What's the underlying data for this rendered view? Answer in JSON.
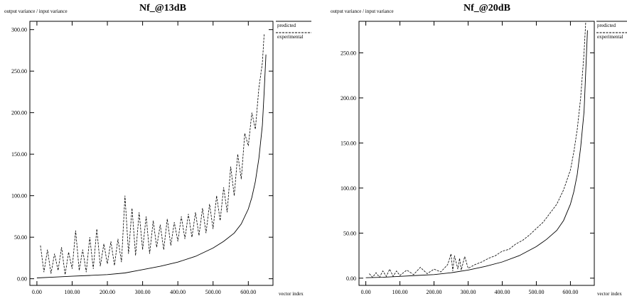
{
  "chart_data": [
    {
      "type": "line",
      "title": "Nf_@13dB",
      "ylabel": "output variance / input variance",
      "xlabel": "vector index",
      "xlim": [
        -20,
        670
      ],
      "ylim": [
        -8,
        310
      ],
      "x_ticks": [
        0,
        100,
        200,
        300,
        400,
        500,
        600
      ],
      "y_ticks": [
        0,
        50,
        100,
        150,
        200,
        250,
        300
      ],
      "x_tick_labels": [
        "0.00",
        "100.00",
        "200.00",
        "300.00",
        "400.00",
        "500.00",
        "600.00"
      ],
      "y_tick_labels": [
        "0.00",
        "50.00",
        "100.00",
        "150.00",
        "200.00",
        "250.00",
        "300.00"
      ],
      "legend_position": "right",
      "series": [
        {
          "name": "predicted",
          "style": "solid",
          "x": [
            0,
            50,
            100,
            150,
            200,
            250,
            300,
            350,
            400,
            450,
            500,
            530,
            560,
            580,
            600,
            610,
            620,
            630,
            640,
            645,
            650
          ],
          "y": [
            1,
            2,
            3,
            4,
            5,
            7,
            11,
            15,
            20,
            27,
            37,
            45,
            55,
            66,
            84,
            98,
            117,
            145,
            185,
            225,
            270
          ]
        },
        {
          "name": "experimental",
          "style": "dashed",
          "x": [
            10,
            20,
            30,
            40,
            50,
            60,
            70,
            80,
            90,
            100,
            110,
            120,
            130,
            140,
            150,
            160,
            170,
            180,
            190,
            200,
            210,
            220,
            230,
            240,
            250,
            260,
            270,
            280,
            290,
            300,
            310,
            320,
            330,
            340,
            350,
            360,
            370,
            380,
            390,
            400,
            410,
            420,
            430,
            440,
            450,
            460,
            470,
            480,
            490,
            500,
            510,
            520,
            530,
            540,
            550,
            560,
            570,
            580,
            590,
            600,
            610,
            620,
            630,
            640,
            645
          ],
          "y": [
            40,
            8,
            35,
            6,
            30,
            10,
            38,
            5,
            32,
            12,
            58,
            10,
            35,
            8,
            50,
            12,
            60,
            15,
            42,
            18,
            45,
            16,
            48,
            20,
            100,
            30,
            85,
            28,
            80,
            35,
            75,
            30,
            70,
            38,
            65,
            35,
            72,
            40,
            68,
            45,
            75,
            48,
            78,
            50,
            80,
            52,
            85,
            55,
            90,
            60,
            100,
            70,
            110,
            80,
            135,
            100,
            150,
            120,
            175,
            160,
            200,
            180,
            230,
            260,
            295
          ]
        }
      ]
    },
    {
      "type": "line",
      "title": "Nf_@20dB",
      "ylabel": "output variance / input variance",
      "xlabel": "vector index",
      "xlim": [
        -20,
        670
      ],
      "ylim": [
        -8,
        285
      ],
      "x_ticks": [
        0,
        100,
        200,
        300,
        400,
        500,
        600
      ],
      "y_ticks": [
        0,
        50,
        100,
        150,
        200,
        250
      ],
      "x_tick_labels": [
        "0.00",
        "100.00",
        "200.00",
        "300.00",
        "400.00",
        "500.00",
        "600.00"
      ],
      "y_tick_labels": [
        "0.00",
        "50.00",
        "100.00",
        "150.00",
        "200.00",
        "250.00"
      ],
      "legend_position": "right",
      "series": [
        {
          "name": "predicted",
          "style": "solid",
          "x": [
            0,
            50,
            100,
            150,
            200,
            250,
            300,
            350,
            400,
            450,
            500,
            530,
            560,
            580,
            600,
            610,
            620,
            630,
            640,
            645,
            650
          ],
          "y": [
            0.5,
            1,
            2,
            3,
            4,
            6,
            9,
            13,
            18,
            25,
            35,
            43,
            53,
            64,
            82,
            96,
            115,
            145,
            185,
            230,
            275
          ]
        },
        {
          "name": "experimental",
          "style": "dashed",
          "x": [
            10,
            20,
            30,
            40,
            50,
            60,
            70,
            80,
            90,
            100,
            120,
            140,
            160,
            180,
            200,
            220,
            240,
            250,
            255,
            260,
            270,
            275,
            280,
            290,
            300,
            320,
            340,
            360,
            380,
            400,
            420,
            440,
            460,
            480,
            500,
            520,
            540,
            560,
            580,
            600,
            610,
            620,
            630,
            640,
            645
          ],
          "y": [
            5,
            1,
            6,
            1,
            8,
            2,
            10,
            2,
            8,
            3,
            9,
            4,
            12,
            5,
            10,
            7,
            15,
            27,
            8,
            25,
            10,
            22,
            9,
            24,
            11,
            15,
            18,
            22,
            25,
            30,
            32,
            38,
            42,
            48,
            55,
            62,
            72,
            82,
            98,
            120,
            140,
            165,
            200,
            250,
            285
          ]
        }
      ]
    }
  ]
}
